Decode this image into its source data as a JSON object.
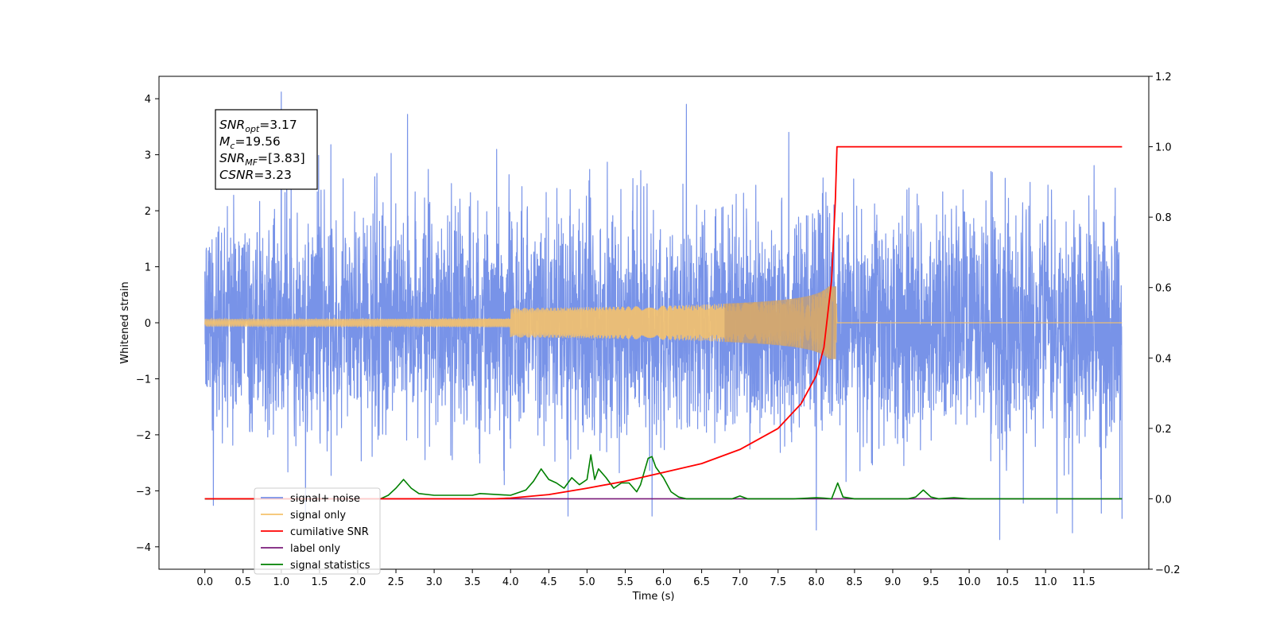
{
  "chart_data": {
    "type": "line",
    "title": "",
    "xlabel": "Time (s)",
    "ylabel": "Whitened strain",
    "ylabel_right": "",
    "xlim": [
      -0.6,
      12.35
    ],
    "ylim": [
      -4.4,
      4.4
    ],
    "ylim_right": [
      -0.2,
      1.2
    ],
    "x_ticks": [
      "0.0",
      "0.5",
      "1.0",
      "1.5",
      "2.0",
      "2.5",
      "3.0",
      "3.5",
      "4.0",
      "4.5",
      "5.0",
      "5.5",
      "6.0",
      "6.5",
      "7.0",
      "7.5",
      "8.0",
      "8.5",
      "9.0",
      "9.5",
      "10.0",
      "10.5",
      "11.0",
      "11.5"
    ],
    "y_ticks": [
      "−4",
      "−3",
      "−2",
      "−1",
      "0",
      "1",
      "2",
      "3",
      "4"
    ],
    "y_ticks_right": [
      "−0.2",
      "0.0",
      "0.2",
      "0.4",
      "0.6",
      "0.8",
      "1.0",
      "1.2"
    ],
    "grid": false,
    "legend_position": "lower-left",
    "annotation": {
      "lines": [
        {
          "var": "SNR",
          "sub": "opt",
          "value": "=3.17"
        },
        {
          "var": "M",
          "sub": "c",
          "value": "=19.56"
        },
        {
          "var": "SNR",
          "sub": "MF",
          "value": "=[3.83]"
        },
        {
          "var": "CSNR",
          "sub": "",
          "value": "=3.23"
        }
      ]
    },
    "series": [
      {
        "name": "signal+ noise",
        "color": "#7893e8",
        "axis": "left",
        "x_range": [
          0.0,
          12.0
        ],
        "typical_amplitude": 1.8,
        "peaks": [
          {
            "x": 1.0,
            "y": 4.12
          },
          {
            "x": 2.65,
            "y": 3.72
          },
          {
            "x": 6.3,
            "y": 3.9
          },
          {
            "x": 11.35,
            "y": 3.9
          },
          {
            "x": 10.4,
            "y": -3.87
          },
          {
            "x": 8.0,
            "y": -3.7
          },
          {
            "x": 11.35,
            "y": -3.75
          },
          {
            "x": 12.0,
            "y": -3.5
          },
          {
            "x": 4.75,
            "y": -3.45
          },
          {
            "x": 5.85,
            "y": -3.45
          }
        ]
      },
      {
        "name": "signal only",
        "color": "#f5c26b",
        "axis": "left",
        "x_range": [
          0.0,
          12.0
        ],
        "merger_time": 8.27,
        "peak_amplitude": 0.65
      },
      {
        "name": "cumilative SNR",
        "color": "#ff0000",
        "axis": "right",
        "x": [
          0.0,
          3.8,
          4.0,
          4.5,
          5.0,
          5.5,
          6.0,
          6.5,
          7.0,
          7.5,
          7.8,
          8.0,
          8.1,
          8.2,
          8.25,
          8.27,
          8.28,
          12.0
        ],
        "values": [
          0.0,
          0.0,
          0.002,
          0.012,
          0.03,
          0.05,
          0.075,
          0.1,
          0.14,
          0.2,
          0.27,
          0.35,
          0.43,
          0.62,
          0.85,
          1.0,
          1.0,
          1.0
        ]
      },
      {
        "name": "label only",
        "color": "#7a1c7a",
        "axis": "right",
        "x": [
          0.0,
          12.0
        ],
        "values": [
          0.0,
          0.0
        ]
      },
      {
        "name": "signal statistics",
        "color": "#008000",
        "axis": "right",
        "x": [
          0.0,
          2.3,
          2.4,
          2.5,
          2.6,
          2.7,
          2.8,
          3.0,
          3.2,
          3.5,
          3.6,
          4.0,
          4.2,
          4.3,
          4.4,
          4.5,
          4.6,
          4.7,
          4.8,
          4.9,
          5.0,
          5.05,
          5.1,
          5.15,
          5.25,
          5.35,
          5.45,
          5.55,
          5.65,
          5.7,
          5.8,
          5.85,
          5.9,
          6.0,
          6.1,
          6.2,
          6.3,
          6.5,
          6.9,
          7.0,
          7.1,
          7.7,
          8.0,
          8.1,
          8.2,
          8.28,
          8.35,
          8.5,
          9.2,
          9.3,
          9.4,
          9.5,
          9.6,
          9.8,
          10.0,
          11.0,
          12.0
        ],
        "values": [
          0.0,
          0.0,
          0.01,
          0.03,
          0.055,
          0.03,
          0.015,
          0.01,
          0.01,
          0.01,
          0.015,
          0.01,
          0.025,
          0.05,
          0.085,
          0.055,
          0.045,
          0.03,
          0.06,
          0.04,
          0.055,
          0.125,
          0.055,
          0.085,
          0.06,
          0.03,
          0.045,
          0.045,
          0.02,
          0.04,
          0.115,
          0.12,
          0.09,
          0.06,
          0.02,
          0.005,
          0.0,
          0.0,
          0.0,
          0.008,
          0.0,
          0.0,
          0.003,
          0.002,
          0.0,
          0.045,
          0.005,
          0.0,
          0.0,
          0.005,
          0.025,
          0.005,
          0.0,
          0.003,
          0.0,
          0.0,
          0.0
        ]
      }
    ]
  }
}
